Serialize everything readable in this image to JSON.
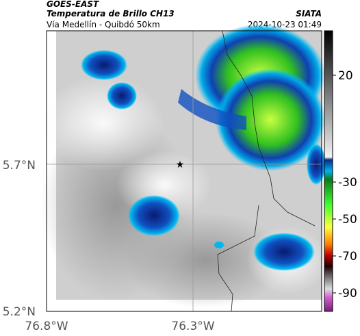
{
  "header": {
    "satellite": "GOES-EAST",
    "product": "Temperatura de Brillo CH13",
    "route": "Vía Medellín - Quibdó 50km",
    "source": "SIATA",
    "timestamp": "2024-10-23 01:49"
  },
  "map": {
    "lat_labels": [
      "5.7°N",
      "5.2°N"
    ],
    "lon_labels": [
      "76.8°W",
      "76.3°W"
    ]
  },
  "colorbar": {
    "ticks": [
      20,
      -30,
      -50,
      -70,
      -90
    ]
  }
}
